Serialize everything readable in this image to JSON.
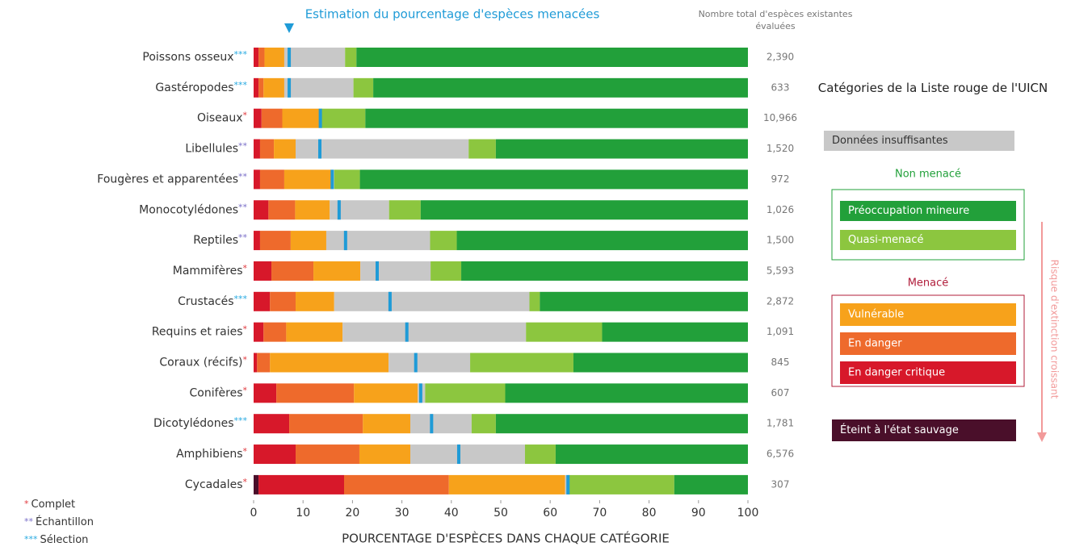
{
  "chart_data": {
    "type": "stacked-bar-horizontal",
    "marker_title": "Estimation du pourcentage d'espèces menacées",
    "totals_title": "Nombre total d'espèces existantes évaluées",
    "x_label": "POURCENTAGE D'ESPÈCES DANS CHAQUE CATÉGORIE",
    "legend_title": "Catégories de la Liste rouge de l'UICN",
    "legend_group_not_threatened": "Non menacé",
    "legend_group_threatened": "Menacé",
    "risk_arrow_label": "Risque d'extinction croissant",
    "categories": [
      "Poissons osseux",
      "Gastéropodes",
      "Oiseaux",
      "Libellules",
      "Fougères et apparentées",
      "Monocotylédones",
      "Reptiles",
      "Mammifères",
      "Crustacés",
      "Requins et raies",
      "Coraux (récifs)",
      "Conifères",
      "Dicotylédones",
      "Amphibiens",
      "Cycadales"
    ],
    "category_notes": [
      "***",
      "***",
      "*",
      "**",
      "**",
      "**",
      "**",
      "*",
      "***",
      "*",
      "*",
      "*",
      "***",
      "*",
      "*"
    ],
    "footnotes": [
      {
        "symbol": "*",
        "label": "Complet"
      },
      {
        "symbol": "**",
        "label": "Échantillon"
      },
      {
        "symbol": "***",
        "label": "Sélection"
      }
    ],
    "series": [
      {
        "name": "Éteint à l'état sauvage",
        "color": "#4a0f2a",
        "values": [
          0,
          0,
          0,
          0,
          0,
          0,
          0,
          0,
          0,
          0,
          0,
          0,
          0,
          0,
          1
        ]
      },
      {
        "name": "En danger critique",
        "color": "#d7182a",
        "values": [
          1,
          1,
          1.6,
          1.3,
          1.3,
          3,
          1.3,
          3.6,
          3.3,
          2,
          0.7,
          4.6,
          7.2,
          8.5,
          17.3
        ]
      },
      {
        "name": "En danger",
        "color": "#ee6a2c",
        "values": [
          1.2,
          1,
          4.2,
          2.8,
          4.9,
          5.4,
          6.2,
          8.5,
          5.2,
          4.6,
          2.6,
          15.7,
          14.9,
          12.9,
          21.2
        ]
      },
      {
        "name": "Vulnérable",
        "color": "#f7a21b",
        "values": [
          4,
          4.2,
          7.5,
          4.4,
          9.5,
          7,
          7.2,
          9.5,
          7.8,
          11.4,
          24,
          12.9,
          9.6,
          10.3,
          23.5
        ]
      },
      {
        "name": "Données insuffisantes",
        "color": "#c8c8c8",
        "values": [
          12.3,
          14,
          0.3,
          35,
          0.6,
          12,
          21,
          14.2,
          39.5,
          37.1,
          16.5,
          1.5,
          12.4,
          23.2,
          0.7
        ]
      },
      {
        "name": "Quasi-menacé",
        "color": "#8cc63f",
        "values": [
          2.3,
          4,
          9,
          5.5,
          5.2,
          6.4,
          5.4,
          6.2,
          2.1,
          15.4,
          20.9,
          16.2,
          4.9,
          6.2,
          21.4
        ]
      },
      {
        "name": "Préoccupation mineure",
        "color": "#22a03a",
        "values": [
          79.2,
          75.8,
          77.4,
          51,
          78.5,
          66.2,
          58.9,
          58,
          42.1,
          29.5,
          35.3,
          49.1,
          51,
          38.9,
          14.9
        ]
      }
    ],
    "threatened_estimate": {
      "color": "#1f9bd7",
      "values": [
        7.2,
        7.2,
        13.5,
        13.4,
        15.9,
        17.3,
        18.6,
        25,
        27.6,
        31,
        32.8,
        33.8,
        36,
        41.5,
        63.6
      ]
    },
    "totals": {
      "values": [
        2390,
        633,
        10966,
        1520,
        972,
        1026,
        1500,
        5593,
        2872,
        1091,
        845,
        607,
        1781,
        6576,
        307
      ],
      "value_labels": [
        "2,390",
        "633",
        "10,966",
        "1,520",
        "972",
        "1,026",
        "1,500",
        "5,593",
        "2,872",
        "1,091",
        "845",
        "607",
        "1,781",
        "6,576",
        "307"
      ]
    },
    "xlim": [
      0,
      100
    ],
    "xticks": [
      0,
      10,
      20,
      30,
      40,
      50,
      60,
      70,
      80,
      90,
      100
    ]
  }
}
